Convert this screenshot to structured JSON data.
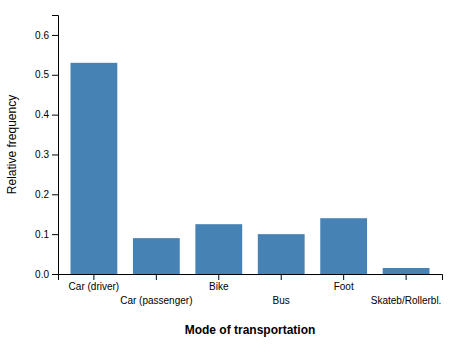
{
  "chart_data": {
    "type": "bar",
    "categories": [
      "Car (driver)",
      "Car (passenger)",
      "Bike",
      "Bus",
      "Foot",
      "Skateb/Rollerbl."
    ],
    "values": [
      0.53,
      0.09,
      0.125,
      0.1,
      0.14,
      0.015
    ],
    "xlabel": "Mode of transportation",
    "ylabel": "Relative frequency",
    "ylim": [
      0.0,
      0.65
    ],
    "yticks": [
      {
        "value": 0.0,
        "label": "0.0"
      },
      0.1,
      0.2,
      0.3,
      0.4,
      0.5,
      0.6
    ]
  }
}
